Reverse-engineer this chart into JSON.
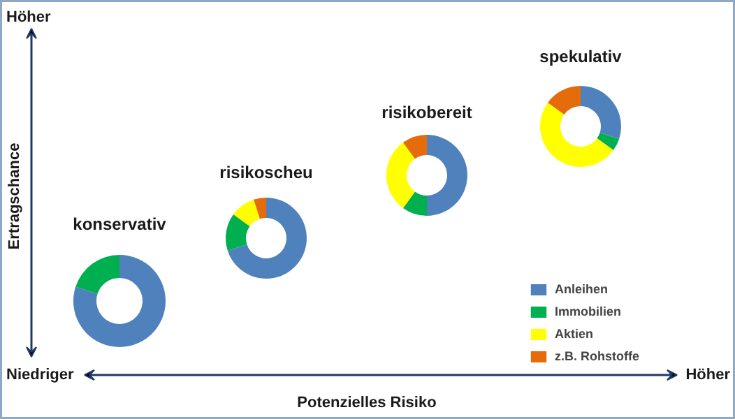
{
  "chart_data": {
    "type": "donut",
    "xlabel": "Potenzielles Risiko",
    "ylabel": "Ertragschance",
    "annotations": [
      "Höher",
      "Niedriger",
      "Höher"
    ],
    "categories": [
      "Anleihen",
      "Immobilien",
      "Aktien",
      "z.B. Rohstoffe"
    ],
    "colors": [
      "#4f81bd",
      "#00b050",
      "#ffff00",
      "#e46c0a"
    ],
    "legend": "bottom right",
    "series": [
      {
        "name": "konservativ",
        "values": [
          80,
          20,
          0,
          0
        ]
      },
      {
        "name": "risikoscheu",
        "values": [
          70,
          15,
          10,
          5
        ]
      },
      {
        "name": "risikobereit",
        "values": [
          50,
          10,
          30,
          10
        ]
      },
      {
        "name": "spekulativ",
        "values": [
          30,
          5,
          50,
          15
        ]
      }
    ]
  }
}
